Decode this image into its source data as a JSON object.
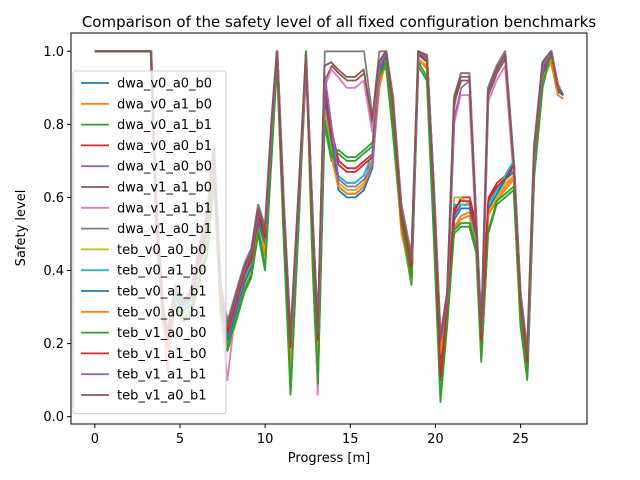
{
  "chart_data": {
    "type": "line",
    "title": "Comparison of the safety level of all fixed configuration benchmarks",
    "xlabel": "Progress [m]",
    "ylabel": "Safety level",
    "xlim": [
      -1.4,
      28.9
    ],
    "ylim": [
      -0.02,
      1.05
    ],
    "xticks": [
      0,
      5,
      10,
      15,
      20,
      25
    ],
    "yticks": [
      0.0,
      0.2,
      0.4,
      0.6,
      0.8,
      1.0
    ],
    "xtick_labels": [
      "0",
      "5",
      "10",
      "15",
      "20",
      "25"
    ],
    "ytick_labels": [
      "0.0",
      "0.2",
      "0.4",
      "0.6",
      "0.8",
      "1.0"
    ],
    "grid": false,
    "legend_position": "left",
    "base_x": [
      0,
      3.3,
      3.6,
      4.0,
      4.3,
      4.7,
      5.2,
      5.7,
      6.2,
      6.6,
      7.0,
      7.4,
      7.8,
      8.3,
      8.8,
      9.2,
      9.6,
      10.0,
      10.4,
      10.7,
      11.1,
      11.5,
      12.0,
      12.4,
      12.8,
      13.1,
      13.5,
      13.9,
      14.3,
      14.8,
      15.3,
      15.8,
      16.3,
      16.7,
      17.1,
      17.5,
      18.0,
      18.6,
      19.0,
      19.5,
      19.9,
      20.3,
      20.7,
      21.1,
      21.5,
      22.0,
      22.4,
      22.7,
      23.1,
      23.6,
      24.1,
      24.6,
      25.0,
      25.4,
      25.8,
      26.3,
      26.8,
      27.2,
      27.5
    ],
    "series": [
      {
        "name": "dwa_v0_a0_b0",
        "color": "#1f77b4",
        "offset": 0.0,
        "values": [
          1.0,
          1.0,
          0.55,
          0.25,
          0.22,
          0.35,
          0.3,
          0.32,
          0.45,
          0.5,
          0.7,
          0.32,
          0.22,
          0.3,
          0.38,
          0.42,
          0.55,
          0.48,
          0.78,
          1.0,
          0.55,
          0.18,
          0.6,
          0.98,
          0.5,
          0.2,
          0.9,
          0.75,
          0.62,
          0.6,
          0.6,
          0.62,
          0.68,
          0.95,
          1.0,
          0.85,
          0.55,
          0.4,
          1.0,
          0.98,
          0.6,
          0.2,
          0.3,
          0.55,
          0.58,
          0.58,
          0.5,
          0.2,
          0.58,
          0.62,
          0.65,
          0.68,
          0.3,
          0.15,
          0.7,
          0.95,
          1.0,
          0.9,
          0.88
        ]
      },
      {
        "name": "dwa_v0_a1_b0",
        "color": "#ff7f0e",
        "offset": 0.01,
        "values": [
          1.0,
          1.0,
          0.5,
          0.3,
          0.18,
          0.32,
          0.28,
          0.3,
          0.4,
          0.46,
          0.66,
          0.3,
          0.2,
          0.28,
          0.36,
          0.4,
          0.52,
          0.45,
          0.75,
          0.98,
          0.5,
          0.15,
          0.58,
          0.95,
          0.45,
          0.18,
          0.85,
          0.72,
          0.64,
          0.62,
          0.62,
          0.64,
          0.7,
          0.9,
          0.98,
          0.8,
          0.5,
          0.38,
          0.98,
          0.95,
          0.55,
          0.18,
          0.28,
          0.52,
          0.55,
          0.56,
          0.48,
          0.18,
          0.56,
          0.6,
          0.63,
          0.66,
          0.28,
          0.12,
          0.68,
          0.93,
          0.98,
          0.88,
          0.87
        ]
      },
      {
        "name": "dwa_v0_a1_b1",
        "color": "#2ca02c",
        "offset": -0.01,
        "values": [
          1.0,
          1.0,
          0.52,
          0.28,
          0.2,
          0.3,
          0.26,
          0.28,
          0.38,
          0.44,
          0.64,
          0.28,
          0.18,
          0.26,
          0.34,
          0.38,
          0.5,
          0.4,
          0.72,
          0.96,
          0.48,
          0.06,
          0.55,
          1.0,
          0.4,
          0.08,
          0.8,
          0.7,
          0.72,
          0.7,
          0.7,
          0.72,
          0.74,
          0.92,
          0.96,
          0.78,
          0.52,
          0.36,
          0.96,
          0.92,
          0.5,
          0.04,
          0.25,
          0.5,
          0.52,
          0.52,
          0.45,
          0.15,
          0.5,
          0.58,
          0.6,
          0.62,
          0.25,
          0.1,
          0.65,
          0.9,
          1.0,
          0.9,
          0.88
        ]
      },
      {
        "name": "dwa_v0_a0_b1",
        "color": "#d62728",
        "offset": 0.02,
        "values": [
          1.0,
          1.0,
          0.58,
          0.3,
          0.22,
          0.36,
          0.32,
          0.34,
          0.46,
          0.52,
          0.72,
          0.34,
          0.24,
          0.32,
          0.4,
          0.44,
          0.56,
          0.5,
          0.8,
          1.0,
          0.56,
          0.2,
          0.62,
          0.96,
          0.52,
          0.22,
          0.92,
          0.78,
          0.7,
          0.68,
          0.68,
          0.7,
          0.72,
          0.96,
          1.0,
          0.86,
          0.56,
          0.42,
          1.0,
          0.98,
          0.62,
          0.1,
          0.32,
          0.56,
          0.6,
          0.6,
          0.52,
          0.22,
          0.6,
          0.64,
          0.66,
          0.7,
          0.32,
          0.16,
          0.72,
          0.96,
          1.0,
          0.9,
          0.88
        ]
      },
      {
        "name": "dwa_v1_a0_b0",
        "color": "#9467bd",
        "offset": -0.02,
        "values": [
          1.0,
          1.0,
          0.54,
          0.26,
          0.24,
          0.34,
          0.3,
          0.36,
          0.48,
          0.56,
          0.74,
          0.36,
          0.26,
          0.34,
          0.42,
          0.46,
          0.58,
          0.52,
          0.82,
          1.0,
          0.58,
          0.22,
          0.64,
          0.98,
          0.54,
          0.24,
          0.94,
          0.8,
          0.66,
          0.64,
          0.64,
          0.66,
          0.7,
          0.97,
          1.0,
          0.88,
          0.58,
          0.44,
          1.0,
          0.99,
          0.64,
          0.22,
          0.34,
          0.84,
          0.94,
          0.94,
          0.54,
          0.24,
          0.9,
          0.96,
          1.0,
          0.7,
          0.34,
          0.18,
          0.74,
          0.97,
          1.0,
          0.91,
          0.88
        ]
      },
      {
        "name": "dwa_v1_a1_b0",
        "color": "#8c564b",
        "offset": 0.015,
        "values": [
          1.0,
          1.0,
          0.56,
          0.28,
          0.22,
          0.34,
          0.3,
          0.33,
          0.46,
          0.54,
          0.72,
          0.34,
          0.24,
          0.32,
          0.4,
          0.44,
          0.56,
          0.5,
          0.8,
          1.0,
          0.56,
          0.2,
          0.62,
          0.98,
          0.52,
          0.22,
          0.92,
          0.96,
          0.94,
          0.92,
          0.92,
          0.94,
          0.8,
          0.96,
          1.0,
          0.86,
          0.56,
          0.42,
          1.0,
          0.98,
          0.62,
          0.2,
          0.32,
          0.86,
          0.92,
          0.92,
          0.52,
          0.22,
          0.88,
          0.94,
          0.98,
          0.68,
          0.32,
          0.16,
          0.72,
          0.96,
          1.0,
          0.9,
          0.88
        ]
      },
      {
        "name": "dwa_v1_a1_b1",
        "color": "#e377c2",
        "offset": -0.015,
        "values": [
          1.0,
          1.0,
          0.52,
          0.28,
          0.12,
          0.3,
          0.28,
          0.3,
          0.42,
          0.5,
          0.7,
          0.3,
          0.1,
          0.3,
          0.38,
          0.42,
          0.54,
          0.48,
          0.78,
          1.0,
          0.54,
          0.1,
          0.6,
          0.98,
          0.5,
          0.06,
          0.9,
          0.95,
          0.93,
          0.9,
          0.9,
          0.92,
          0.78,
          0.95,
          1.0,
          0.84,
          0.54,
          0.4,
          1.0,
          0.98,
          0.6,
          0.14,
          0.3,
          0.8,
          0.88,
          0.88,
          0.5,
          0.2,
          0.86,
          0.92,
          0.96,
          0.66,
          0.3,
          0.14,
          0.7,
          0.95,
          1.0,
          0.9,
          0.88
        ]
      },
      {
        "name": "dwa_v1_a0_b1",
        "color": "#7f7f7f",
        "offset": 0.005,
        "values": [
          1.0,
          1.0,
          0.54,
          0.28,
          0.24,
          0.36,
          0.32,
          0.34,
          0.48,
          0.56,
          0.74,
          0.36,
          0.26,
          0.34,
          0.42,
          0.46,
          0.58,
          0.52,
          0.82,
          1.0,
          0.58,
          0.22,
          0.64,
          1.0,
          0.54,
          0.24,
          1.0,
          1.0,
          1.0,
          1.0,
          1.0,
          1.0,
          0.82,
          1.0,
          1.0,
          0.88,
          0.58,
          0.44,
          1.0,
          0.99,
          0.64,
          0.22,
          0.34,
          0.88,
          0.94,
          0.94,
          0.54,
          0.24,
          0.9,
          0.96,
          1.0,
          0.7,
          0.34,
          0.18,
          0.74,
          0.97,
          1.0,
          0.91,
          0.88
        ]
      },
      {
        "name": "teb_v0_a0_b0",
        "color": "#bcbd22",
        "offset": 0.008,
        "values": [
          1.0,
          1.0,
          0.5,
          0.26,
          0.2,
          0.32,
          0.28,
          0.3,
          0.42,
          0.48,
          0.68,
          0.3,
          0.2,
          0.28,
          0.36,
          0.4,
          0.52,
          0.46,
          0.76,
          0.98,
          0.52,
          0.16,
          0.58,
          0.96,
          0.48,
          0.18,
          0.86,
          0.74,
          0.64,
          0.62,
          0.62,
          0.64,
          0.7,
          0.92,
          0.98,
          0.82,
          0.52,
          0.38,
          0.98,
          0.96,
          0.58,
          0.18,
          0.28,
          0.6,
          0.6,
          0.58,
          0.48,
          0.18,
          0.56,
          0.6,
          0.64,
          0.66,
          0.28,
          0.12,
          0.68,
          0.94,
          0.98,
          0.88,
          0.87
        ]
      },
      {
        "name": "teb_v0_a1_b0",
        "color": "#17becf",
        "offset": -0.008,
        "values": [
          1.0,
          1.0,
          0.52,
          0.28,
          0.22,
          0.34,
          0.3,
          0.32,
          0.44,
          0.5,
          0.7,
          0.32,
          0.22,
          0.3,
          0.38,
          0.42,
          0.54,
          0.48,
          0.78,
          1.0,
          0.54,
          0.18,
          0.6,
          0.98,
          0.5,
          0.2,
          0.88,
          0.76,
          0.66,
          0.64,
          0.64,
          0.66,
          0.72,
          0.94,
          1.0,
          0.84,
          0.54,
          0.4,
          1.0,
          0.98,
          0.6,
          0.15,
          0.3,
          0.58,
          0.58,
          0.58,
          0.5,
          0.2,
          0.58,
          0.62,
          0.66,
          0.7,
          0.3,
          0.14,
          0.7,
          0.95,
          1.0,
          0.89,
          0.88
        ]
      },
      {
        "name": "teb_v0_a1_b1",
        "color": "#1f77b4",
        "offset": 0.012,
        "values": [
          1.0,
          1.0,
          0.53,
          0.27,
          0.21,
          0.33,
          0.29,
          0.31,
          0.43,
          0.49,
          0.69,
          0.31,
          0.21,
          0.29,
          0.37,
          0.41,
          0.53,
          0.47,
          0.77,
          0.99,
          0.53,
          0.17,
          0.59,
          0.97,
          0.49,
          0.19,
          0.87,
          0.75,
          0.63,
          0.61,
          0.61,
          0.63,
          0.69,
          0.93,
          0.99,
          0.83,
          0.53,
          0.39,
          0.99,
          0.97,
          0.59,
          0.16,
          0.29,
          0.54,
          0.57,
          0.57,
          0.49,
          0.19,
          0.57,
          0.61,
          0.65,
          0.67,
          0.29,
          0.13,
          0.69,
          0.94,
          0.99,
          0.89,
          0.88
        ]
      },
      {
        "name": "teb_v0_a0_b1",
        "color": "#ff7f0e",
        "offset": -0.012,
        "values": [
          1.0,
          1.0,
          0.51,
          0.29,
          0.19,
          0.31,
          0.27,
          0.29,
          0.41,
          0.47,
          0.67,
          0.29,
          0.19,
          0.27,
          0.35,
          0.39,
          0.51,
          0.44,
          0.74,
          0.97,
          0.51,
          0.14,
          0.57,
          0.99,
          0.47,
          0.17,
          0.84,
          0.71,
          0.63,
          0.61,
          0.61,
          0.63,
          0.69,
          0.91,
          0.97,
          0.81,
          0.51,
          0.37,
          0.97,
          0.96,
          0.56,
          0.17,
          0.27,
          0.51,
          0.54,
          0.55,
          0.47,
          0.17,
          0.55,
          0.59,
          0.62,
          0.65,
          0.27,
          0.11,
          0.67,
          0.92,
          0.97,
          0.88,
          0.87
        ]
      },
      {
        "name": "teb_v1_a0_b0",
        "color": "#2ca02c",
        "offset": 0.004,
        "values": [
          1.0,
          1.0,
          0.53,
          0.27,
          0.21,
          0.31,
          0.27,
          0.29,
          0.39,
          0.45,
          0.65,
          0.29,
          0.19,
          0.27,
          0.35,
          0.39,
          0.51,
          0.41,
          0.73,
          0.97,
          0.49,
          0.07,
          0.56,
          1.0,
          0.41,
          0.09,
          0.81,
          0.71,
          0.73,
          0.71,
          0.71,
          0.73,
          0.75,
          0.93,
          0.97,
          0.79,
          0.53,
          0.37,
          0.97,
          0.93,
          0.51,
          0.05,
          0.26,
          0.51,
          0.53,
          0.53,
          0.46,
          0.16,
          0.51,
          0.59,
          0.61,
          0.63,
          0.26,
          0.11,
          0.66,
          0.91,
          1.0,
          0.9,
          0.88
        ]
      },
      {
        "name": "teb_v1_a1_b0",
        "color": "#d62728",
        "offset": -0.004,
        "values": [
          1.0,
          1.0,
          0.57,
          0.29,
          0.21,
          0.35,
          0.31,
          0.33,
          0.45,
          0.51,
          0.71,
          0.33,
          0.23,
          0.31,
          0.39,
          0.43,
          0.55,
          0.49,
          0.79,
          1.0,
          0.55,
          0.19,
          0.61,
          0.97,
          0.51,
          0.21,
          0.91,
          0.77,
          0.69,
          0.67,
          0.67,
          0.69,
          0.71,
          0.95,
          1.0,
          0.85,
          0.55,
          0.41,
          1.0,
          0.97,
          0.61,
          0.11,
          0.31,
          0.57,
          0.59,
          0.59,
          0.51,
          0.21,
          0.59,
          0.63,
          0.65,
          0.69,
          0.31,
          0.15,
          0.71,
          0.95,
          1.0,
          0.9,
          0.88
        ]
      },
      {
        "name": "teb_v1_a1_b1",
        "color": "#9467bd",
        "offset": 0.018,
        "values": [
          1.0,
          1.0,
          0.55,
          0.27,
          0.23,
          0.35,
          0.31,
          0.35,
          0.47,
          0.55,
          0.73,
          0.35,
          0.25,
          0.33,
          0.41,
          0.45,
          0.57,
          0.51,
          0.81,
          1.0,
          0.57,
          0.21,
          0.63,
          0.97,
          0.53,
          0.23,
          0.93,
          0.79,
          0.65,
          0.63,
          0.63,
          0.65,
          0.69,
          0.96,
          1.0,
          0.87,
          0.57,
          0.43,
          1.0,
          0.98,
          0.63,
          0.21,
          0.33,
          0.82,
          0.9,
          0.92,
          0.53,
          0.23,
          0.89,
          0.95,
          0.99,
          0.69,
          0.33,
          0.17,
          0.73,
          0.96,
          1.0,
          0.9,
          0.88
        ]
      },
      {
        "name": "teb_v1_a0_b1",
        "color": "#8c564b",
        "offset": -0.018,
        "values": [
          1.0,
          1.0,
          0.55,
          0.29,
          0.23,
          0.35,
          0.31,
          0.34,
          0.47,
          0.55,
          0.73,
          0.35,
          0.25,
          0.33,
          0.41,
          0.45,
          0.57,
          0.51,
          0.81,
          1.0,
          0.57,
          0.21,
          0.63,
          0.99,
          0.53,
          0.23,
          0.96,
          0.97,
          0.95,
          0.93,
          0.93,
          0.95,
          0.81,
          0.97,
          1.0,
          0.87,
          0.57,
          0.43,
          1.0,
          0.99,
          0.63,
          0.21,
          0.33,
          0.87,
          0.93,
          0.93,
          0.53,
          0.23,
          0.89,
          0.95,
          0.99,
          0.69,
          0.33,
          0.17,
          0.73,
          0.97,
          1.0,
          0.9,
          0.88
        ]
      }
    ]
  }
}
